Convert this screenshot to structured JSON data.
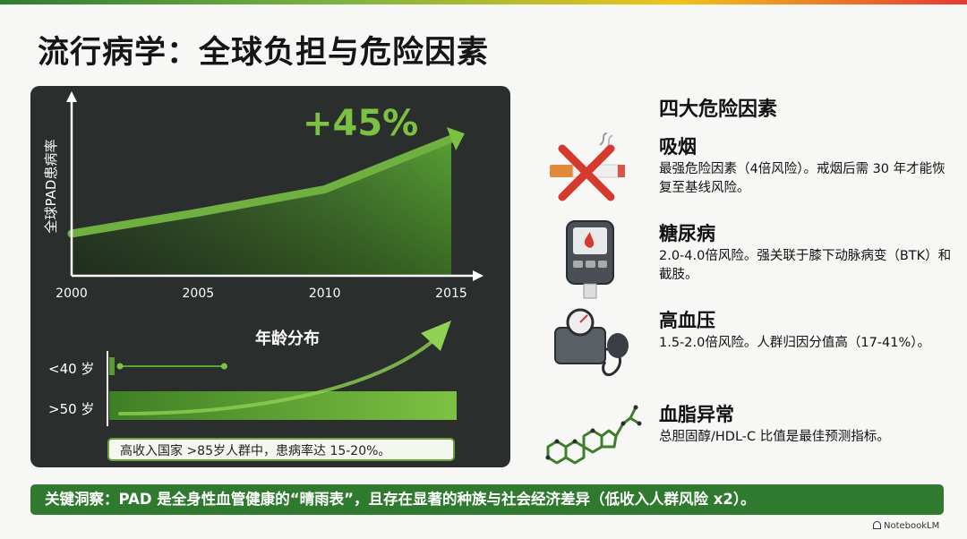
{
  "title": "流行病学：全球负担与危险因素",
  "chart_data": [
    {
      "type": "area",
      "ylabel": "全球PAD患病率",
      "x": [
        2000,
        2005,
        2010,
        2015
      ],
      "tick_labels": [
        "2000",
        "2005",
        "2010",
        "2015"
      ],
      "values": [
        100,
        110,
        121,
        145
      ],
      "annotation": "+45%",
      "colors": {
        "line": "#6fb040",
        "area": "#4f8f2c",
        "arrow": "#7cc242"
      }
    },
    {
      "type": "bar",
      "title": "年龄分布",
      "categories": [
        "<40 岁",
        ">50 岁"
      ],
      "values": [
        0.3,
        1.0
      ],
      "note": "高收入国家 >85岁人群中，患病率达 15-20%。"
    }
  ],
  "risk_factors": {
    "heading": "四大危险因素",
    "items": [
      {
        "icon": "no-smoking-icon",
        "name": "吸烟",
        "desc": "最强危险因素（4倍风险）。戒烟后需 30 年才能恢复至基线风险。"
      },
      {
        "icon": "glucose-meter-icon",
        "name": "糖尿病",
        "desc": "2.0-4.0倍风险。强关联于膝下动脉病变（BTK）和截肢。"
      },
      {
        "icon": "blood-pressure-icon",
        "name": "高血压",
        "desc": "1.5-2.0倍风险。人群归因分值高（17-41%）。"
      },
      {
        "icon": "cholesterol-molecule-icon",
        "name": "血脂异常",
        "desc": "总胆固醇/HDL-C 比值是最佳预测指标。"
      }
    ]
  },
  "footer": "关键洞察：PAD 是全身性血管健康的“晴雨表”，且存在显著的种族与社会经济差异（低收入人群风险 x2）。",
  "brand": "NotebookLM",
  "colors": {
    "panel": "#2a2f2e",
    "accent": "#2f7a2f",
    "green": "#6fb040"
  }
}
